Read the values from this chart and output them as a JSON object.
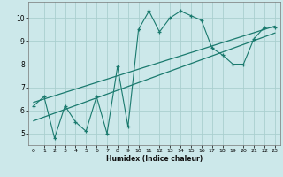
{
  "title": "",
  "xlabel": "Humidex (Indice chaleur)",
  "ylabel": "",
  "bg_color": "#cce8ea",
  "grid_color": "#aacfcf",
  "line_color": "#1a7a6e",
  "xlim": [
    -0.5,
    23.5
  ],
  "ylim": [
    4.5,
    10.7
  ],
  "xticks": [
    0,
    1,
    2,
    3,
    4,
    5,
    6,
    7,
    8,
    9,
    10,
    11,
    12,
    13,
    14,
    15,
    16,
    17,
    18,
    19,
    20,
    21,
    22,
    23
  ],
  "yticks": [
    5,
    6,
    7,
    8,
    9,
    10
  ],
  "main_x": [
    0,
    1,
    2,
    3,
    4,
    5,
    6,
    7,
    8,
    9,
    10,
    11,
    12,
    13,
    14,
    15,
    16,
    17,
    18,
    19,
    20,
    21,
    22,
    23
  ],
  "main_y": [
    6.2,
    6.6,
    4.8,
    6.2,
    5.5,
    5.1,
    6.6,
    5.0,
    7.9,
    5.3,
    9.5,
    10.3,
    9.4,
    10.0,
    10.3,
    10.1,
    9.9,
    8.7,
    8.4,
    8.0,
    8.0,
    9.1,
    9.6,
    9.6
  ],
  "trend1_x": [
    0,
    23
  ],
  "trend1_y": [
    6.35,
    9.65
  ],
  "trend2_x": [
    0,
    23
  ],
  "trend2_y": [
    5.55,
    9.35
  ]
}
